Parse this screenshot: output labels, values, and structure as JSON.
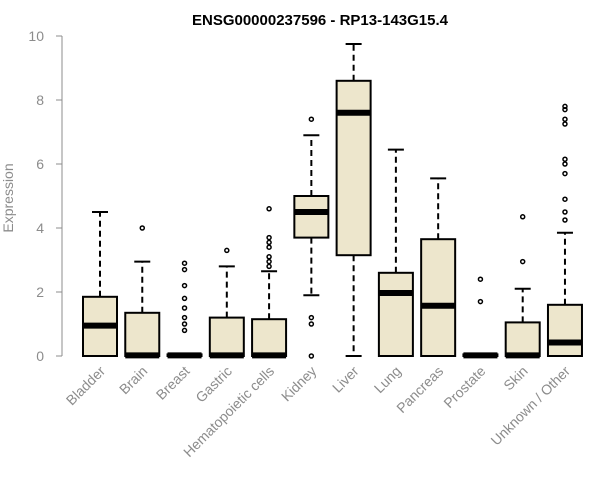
{
  "chart_data": {
    "type": "boxplot",
    "title": "ENSG00000237596 - RP13-143G15.4",
    "xlabel": "",
    "ylabel": "Expression",
    "ylim": [
      0,
      10
    ],
    "yticks": [
      0,
      2,
      4,
      6,
      8,
      10
    ],
    "box_fill": "#ede6cc",
    "categories": [
      "Bladder",
      "Brain",
      "Breast",
      "Gastric",
      "Hematopoietic cells",
      "Kidney",
      "Liver",
      "Lung",
      "Pancreas",
      "Prostate",
      "Skin",
      "Unknown / Other"
    ],
    "series": [
      {
        "name": "Bladder",
        "whisker_low": 0,
        "q1": 0,
        "median": 0.95,
        "q3": 1.85,
        "whisker_high": 4.5,
        "outliers": []
      },
      {
        "name": "Brain",
        "whisker_low": 0,
        "q1": 0,
        "median": 0.02,
        "q3": 1.35,
        "whisker_high": 2.95,
        "outliers": [
          4.0
        ]
      },
      {
        "name": "Breast",
        "whisker_low": 0,
        "q1": 0,
        "median": 0.02,
        "q3": 0.05,
        "whisker_high": 0.05,
        "outliers": [
          0.8,
          1.0,
          1.2,
          1.5,
          1.8,
          2.2,
          2.7,
          2.9
        ]
      },
      {
        "name": "Gastric",
        "whisker_low": 0,
        "q1": 0,
        "median": 0.02,
        "q3": 1.2,
        "whisker_high": 2.8,
        "outliers": [
          3.3
        ]
      },
      {
        "name": "Hematopoietic cells",
        "whisker_low": 0,
        "q1": 0,
        "median": 0.02,
        "q3": 1.15,
        "whisker_high": 2.65,
        "outliers": [
          2.8,
          2.95,
          3.1,
          3.4,
          3.55,
          3.7,
          4.6
        ]
      },
      {
        "name": "Kidney",
        "whisker_low": 1.9,
        "q1": 3.7,
        "median": 4.5,
        "q3": 5.0,
        "whisker_high": 6.9,
        "outliers": [
          0,
          1.0,
          1.2,
          7.4
        ]
      },
      {
        "name": "Liver",
        "whisker_low": 0,
        "q1": 3.15,
        "median": 7.6,
        "q3": 8.6,
        "whisker_high": 9.75,
        "outliers": []
      },
      {
        "name": "Lung",
        "whisker_low": 0,
        "q1": 0,
        "median": 1.97,
        "q3": 2.6,
        "whisker_high": 6.45,
        "outliers": []
      },
      {
        "name": "Pancreas",
        "whisker_low": 0,
        "q1": 0,
        "median": 1.57,
        "q3": 3.65,
        "whisker_high": 5.55,
        "outliers": []
      },
      {
        "name": "Prostate",
        "whisker_low": 0,
        "q1": 0,
        "median": 0.02,
        "q3": 0.05,
        "whisker_high": 0.05,
        "outliers": [
          1.7,
          2.4
        ]
      },
      {
        "name": "Skin",
        "whisker_low": 0,
        "q1": 0,
        "median": 0.02,
        "q3": 1.05,
        "whisker_high": 2.1,
        "outliers": [
          2.95,
          4.35
        ]
      },
      {
        "name": "Unknown / Other",
        "whisker_low": 0,
        "q1": 0,
        "median": 0.42,
        "q3": 1.6,
        "whisker_high": 3.85,
        "outliers": [
          4.25,
          4.5,
          4.9,
          5.7,
          6.0,
          6.15,
          7.25,
          7.4,
          7.7,
          7.8
        ]
      }
    ]
  }
}
